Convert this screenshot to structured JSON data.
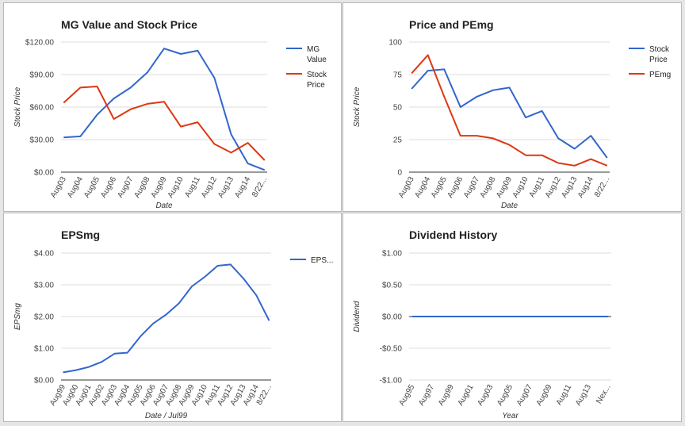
{
  "chart_data": [
    {
      "type": "line",
      "title": "MG Value and Stock Price",
      "xlabel": "Date",
      "ylabel": "Stock Price",
      "ylim": [
        0,
        120
      ],
      "yticks": [
        "$0.00",
        "$30.00",
        "$60.00",
        "$90.00",
        "$120.00"
      ],
      "categories": [
        "Aug03",
        "Aug04",
        "Aug05",
        "Aug06",
        "Aug07",
        "Aug08",
        "Aug09",
        "Aug10",
        "Aug11",
        "Aug12",
        "Aug13",
        "Aug14",
        "8/22..."
      ],
      "series": [
        {
          "name": "MG Value",
          "color": "#3366cc",
          "values": [
            32,
            33,
            53,
            68,
            78,
            92,
            114,
            109,
            112,
            87,
            35,
            8,
            2
          ]
        },
        {
          "name": "Stock Price",
          "color": "#dc3912",
          "values": [
            64,
            78,
            79,
            49,
            58,
            63,
            65,
            42,
            46,
            26,
            18,
            27,
            11
          ]
        }
      ],
      "legend": "right",
      "grid": true
    },
    {
      "type": "line",
      "title": "Price and PEmg",
      "xlabel": "Date",
      "ylabel": "Stock Price",
      "ylim": [
        0,
        100
      ],
      "yticks": [
        "0",
        "25",
        "50",
        "75",
        "100"
      ],
      "categories": [
        "Aug03",
        "Aug04",
        "Aug05",
        "Aug06",
        "Aug07",
        "Aug08",
        "Aug09",
        "Aug10",
        "Aug11",
        "Aug12",
        "Aug13",
        "Aug14",
        "8/22..."
      ],
      "series": [
        {
          "name": "Stock Price",
          "color": "#3366cc",
          "values": [
            64,
            78,
            79,
            50,
            58,
            63,
            65,
            42,
            47,
            26,
            18,
            28,
            11
          ]
        },
        {
          "name": "PEmg",
          "color": "#dc3912",
          "values": [
            76,
            90,
            58,
            28,
            28,
            26,
            21,
            13,
            13,
            7,
            5,
            10,
            5
          ]
        }
      ],
      "legend": "right",
      "grid": true
    },
    {
      "type": "line",
      "title": "EPSmg",
      "xlabel": "Date / Jul99",
      "ylabel": "EPSmg",
      "ylim": [
        0,
        4
      ],
      "yticks": [
        "$0.00",
        "$1.00",
        "$2.00",
        "$3.00",
        "$4.00"
      ],
      "categories": [
        "Aug99",
        "Aug00",
        "Aug01",
        "Aug02",
        "Aug03",
        "Aug04",
        "Aug05",
        "Aug06",
        "Aug07",
        "Aug08",
        "Aug09",
        "Aug10",
        "Aug11",
        "Aug12",
        "Aug13",
        "Aug14",
        "8/22..."
      ],
      "series": [
        {
          "name": "EPS...",
          "color": "#3366cc",
          "values": [
            0.24,
            0.31,
            0.41,
            0.57,
            0.83,
            0.86,
            1.37,
            1.78,
            2.06,
            2.42,
            2.95,
            3.25,
            3.6,
            3.64,
            3.2,
            2.67,
            1.87
          ]
        }
      ],
      "legend": "right",
      "grid": true
    },
    {
      "type": "line",
      "title": "Dividend History",
      "xlabel": "Year",
      "ylabel": "Dividend",
      "ylim": [
        -1,
        1
      ],
      "yticks": [
        "-$1.00",
        "-$0.50",
        "$0.00",
        "$0.50",
        "$1.00"
      ],
      "categories": [
        "Aug95",
        "Aug97",
        "Aug99",
        "Aug01",
        "Aug03",
        "Aug05",
        "Aug07",
        "Aug09",
        "Aug11",
        "Aug13",
        "Nex..."
      ],
      "series": [
        {
          "color": "#3366cc",
          "values": [
            0,
            0,
            0,
            0,
            0,
            0,
            0,
            0,
            0,
            0,
            0
          ]
        }
      ],
      "legend": "none",
      "grid": true
    }
  ]
}
